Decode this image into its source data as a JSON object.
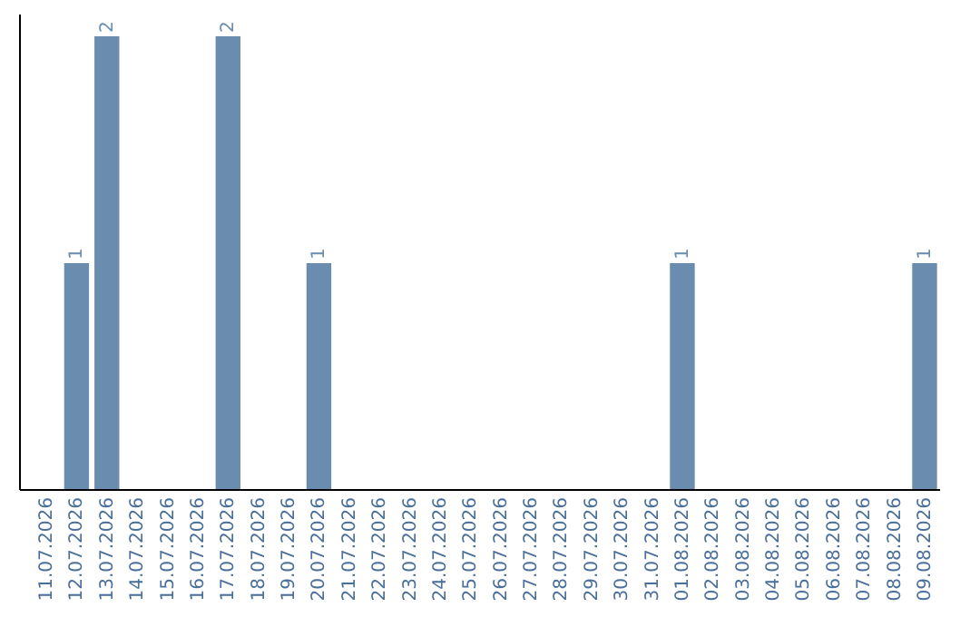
{
  "chart_data": {
    "type": "bar",
    "categories": [
      "11.07.2026",
      "12.07.2026",
      "13.07.2026",
      "14.07.2026",
      "15.07.2026",
      "16.07.2026",
      "17.07.2026",
      "18.07.2026",
      "19.07.2026",
      "20.07.2026",
      "21.07.2026",
      "22.07.2026",
      "23.07.2026",
      "24.07.2026",
      "25.07.2026",
      "26.07.2026",
      "27.07.2026",
      "28.07.2026",
      "29.07.2026",
      "30.07.2026",
      "31.07.2026",
      "01.08.2026",
      "02.08.2026",
      "03.08.2026",
      "04.08.2026",
      "05.08.2026",
      "06.08.2026",
      "07.08.2026",
      "08.08.2026",
      "09.08.2026"
    ],
    "values": [
      0,
      1,
      2,
      0,
      0,
      0,
      2,
      0,
      0,
      1,
      0,
      0,
      0,
      0,
      0,
      0,
      0,
      0,
      0,
      0,
      0,
      1,
      0,
      0,
      0,
      0,
      0,
      0,
      0,
      1
    ],
    "value_labels": [
      null,
      "1",
      "2",
      null,
      null,
      null,
      "2",
      null,
      null,
      "1",
      null,
      null,
      null,
      null,
      null,
      null,
      null,
      null,
      null,
      null,
      null,
      "1",
      null,
      null,
      null,
      null,
      null,
      null,
      null,
      "1"
    ],
    "color": "#6a8caf",
    "ylim": [
      0,
      2
    ],
    "tick_labels": "x"
  }
}
